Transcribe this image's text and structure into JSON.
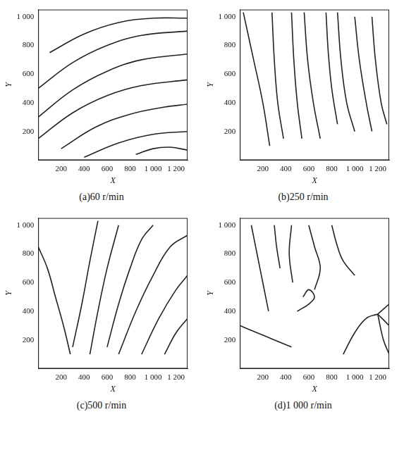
{
  "chart_data": [
    {
      "type": "line",
      "title": "(a)60 r/min",
      "x_label": "X",
      "y_label": "Y",
      "xlim": [
        0,
        1300
      ],
      "ylim": [
        0,
        1050
      ],
      "xticks": [
        200,
        400,
        600,
        800,
        {
          "value": 1000,
          "label": "1 000"
        },
        {
          "value": 1200,
          "label": "1 200"
        }
      ],
      "yticks": [
        200,
        400,
        600,
        800,
        {
          "value": 1000,
          "label": "1 000"
        }
      ],
      "grid": false,
      "series": [
        {
          "color": "#222222",
          "x": [
            100,
            400,
            700,
            1000,
            1300
          ],
          "values": [
            750,
            880,
            960,
            990,
            990
          ]
        },
        {
          "color": "#222222",
          "x": [
            0,
            300,
            600,
            900,
            1300
          ],
          "values": [
            500,
            680,
            800,
            870,
            900
          ]
        },
        {
          "color": "#222222",
          "x": [
            0,
            300,
            600,
            900,
            1300
          ],
          "values": [
            300,
            490,
            620,
            700,
            740
          ]
        },
        {
          "color": "#222222",
          "x": [
            0,
            300,
            600,
            900,
            1300
          ],
          "values": [
            150,
            330,
            450,
            520,
            560
          ]
        },
        {
          "color": "#222222",
          "x": [
            200,
            500,
            800,
            1100,
            1300
          ],
          "values": [
            80,
            230,
            320,
            370,
            390
          ]
        },
        {
          "color": "#222222",
          "x": [
            400,
            700,
            1000,
            1300
          ],
          "values": [
            20,
            120,
            180,
            200
          ]
        },
        {
          "color": "#222222",
          "x": [
            850,
            1000,
            1150,
            1300
          ],
          "values": [
            40,
            80,
            90,
            70
          ]
        }
      ]
    },
    {
      "type": "line",
      "title": "(b)250 r/min",
      "x_label": "X",
      "y_label": "Y",
      "xlim": [
        0,
        1300
      ],
      "ylim": [
        0,
        1050
      ],
      "xticks": [
        200,
        400,
        600,
        800,
        {
          "value": 1000,
          "label": "1 000"
        },
        {
          "value": 1200,
          "label": "1 200"
        }
      ],
      "yticks": [
        200,
        400,
        600,
        800,
        {
          "value": 1000,
          "label": "1 000"
        }
      ],
      "grid": false,
      "series": [
        {
          "color": "#222222",
          "x": [
            30,
            120,
            200,
            260
          ],
          "values": [
            1030,
            700,
            400,
            100
          ]
        },
        {
          "color": "#222222",
          "x": [
            280,
            300,
            330,
            380
          ],
          "values": [
            1030,
            700,
            400,
            150
          ]
        },
        {
          "color": "#222222",
          "x": [
            450,
            470,
            500,
            540
          ],
          "values": [
            1030,
            700,
            400,
            150
          ]
        },
        {
          "color": "#222222",
          "x": [
            560,
            590,
            640,
            700
          ],
          "values": [
            1030,
            700,
            400,
            150
          ]
        },
        {
          "color": "#222222",
          "x": [
            750,
            770,
            800,
            850
          ],
          "values": [
            1030,
            750,
            500,
            250
          ]
        },
        {
          "color": "#222222",
          "x": [
            850,
            880,
            930,
            1000
          ],
          "values": [
            1030,
            700,
            400,
            200
          ]
        },
        {
          "color": "#222222",
          "x": [
            1000,
            1040,
            1100,
            1150
          ],
          "values": [
            1000,
            700,
            400,
            200
          ]
        },
        {
          "color": "#222222",
          "x": [
            1150,
            1180,
            1230,
            1280
          ],
          "values": [
            1000,
            700,
            400,
            250
          ]
        }
      ]
    },
    {
      "type": "line",
      "title": "(c)500 r/min",
      "x_label": "X",
      "y_label": "Y",
      "xlim": [
        0,
        1300
      ],
      "ylim": [
        0,
        1050
      ],
      "xticks": [
        200,
        400,
        600,
        800,
        {
          "value": 1000,
          "label": "1 000"
        },
        {
          "value": 1200,
          "label": "1 200"
        }
      ],
      "yticks": [
        200,
        400,
        600,
        800,
        {
          "value": 1000,
          "label": "1 000"
        }
      ],
      "grid": false,
      "series": [
        {
          "color": "#222222",
          "x": [
            0,
            80,
            150,
            220,
            280
          ],
          "values": [
            850,
            700,
            500,
            300,
            100
          ]
        },
        {
          "color": "#222222",
          "x": [
            300,
            380,
            450,
            520
          ],
          "values": [
            150,
            450,
            750,
            1030
          ]
        },
        {
          "color": "#222222",
          "x": [
            450,
            520,
            600,
            700
          ],
          "values": [
            100,
            400,
            700,
            1000
          ]
        },
        {
          "color": "#222222",
          "x": [
            600,
            700,
            800,
            900,
            1000
          ],
          "values": [
            150,
            450,
            700,
            900,
            1000
          ]
        },
        {
          "color": "#222222",
          "x": [
            700,
            850,
            1000,
            1150,
            1300
          ],
          "values": [
            100,
            400,
            650,
            850,
            930
          ]
        },
        {
          "color": "#222222",
          "x": [
            900,
            1050,
            1200,
            1300
          ],
          "values": [
            100,
            350,
            550,
            650
          ]
        },
        {
          "color": "#222222",
          "x": [
            1100,
            1200,
            1300
          ],
          "values": [
            100,
            250,
            350
          ]
        }
      ]
    },
    {
      "type": "line",
      "title": "(d)1 000 r/min",
      "x_label": "X",
      "y_label": "Y",
      "xlim": [
        0,
        1300
      ],
      "ylim": [
        0,
        1050
      ],
      "xticks": [
        200,
        400,
        600,
        800,
        {
          "value": 1000,
          "label": "1 000"
        },
        {
          "value": 1200,
          "label": "1 200"
        }
      ],
      "yticks": [
        200,
        400,
        600,
        800,
        {
          "value": 1000,
          "label": "1 000"
        }
      ],
      "grid": false,
      "series": [
        {
          "color": "#222222",
          "x": [
            100,
            150,
            200,
            250
          ],
          "values": [
            1000,
            800,
            600,
            400
          ]
        },
        {
          "color": "#222222",
          "x": [
            300,
            320,
            350
          ],
          "values": [
            1000,
            850,
            700
          ]
        },
        {
          "color": "#222222",
          "x": [
            450,
            430,
            460
          ],
          "values": [
            1000,
            800,
            600
          ]
        },
        {
          "color": "#222222",
          "x": [
            600,
            650,
            700,
            650
          ],
          "values": [
            1000,
            850,
            700,
            550
          ]
        },
        {
          "color": "#222222",
          "x": [
            800,
            850,
            900,
            1000
          ],
          "values": [
            1000,
            850,
            750,
            650
          ]
        },
        {
          "color": "#222222",
          "x": [
            900,
            1000,
            1100,
            1200
          ],
          "values": [
            100,
            250,
            350,
            380
          ]
        },
        {
          "color": "#222222",
          "x": [
            1200,
            1300
          ],
          "values": [
            380,
            300
          ]
        },
        {
          "color": "#222222",
          "x": [
            1200,
            1300
          ],
          "values": [
            380,
            450
          ]
        },
        {
          "color": "#222222",
          "x": [
            1200,
            1250,
            1300
          ],
          "values": [
            380,
            200,
            100
          ]
        },
        {
          "color": "#222222",
          "x": [
            0,
            150,
            300,
            450
          ],
          "values": [
            300,
            250,
            200,
            150
          ]
        },
        {
          "color": "#222222",
          "x": [
            500,
            600,
            650,
            600,
            550
          ],
          "values": [
            400,
            450,
            500,
            550,
            500
          ]
        }
      ]
    }
  ]
}
